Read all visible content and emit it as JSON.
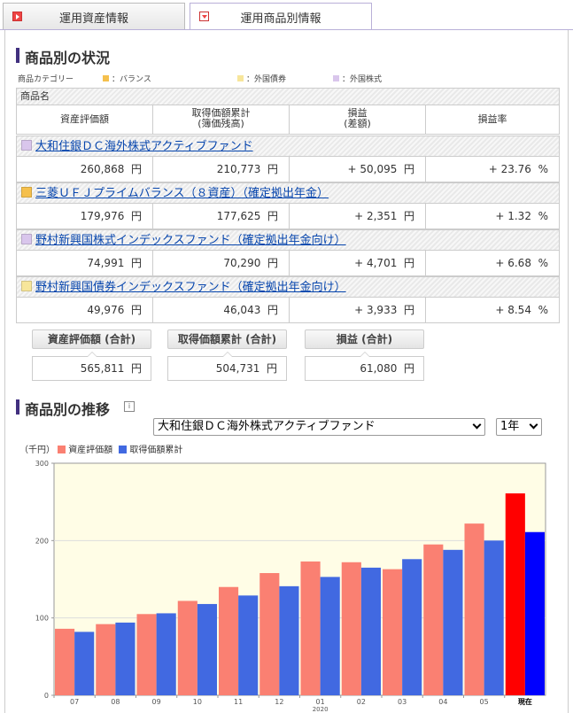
{
  "tabs": [
    {
      "label": "運用資産情報",
      "active": false
    },
    {
      "label": "運用商品別情報",
      "active": true
    }
  ],
  "status": {
    "title": "商品別の状況",
    "category_label": "商品カテゴリー",
    "categories": [
      {
        "label": "：バランス",
        "color": "#f5c04d"
      },
      {
        "label": "：外国債券",
        "color": "#f7e69b"
      },
      {
        "label": "：外国株式",
        "color": "#d9c6ec"
      }
    ],
    "header": {
      "name": "商品名",
      "col1": "資産評価額",
      "col2a": "取得価額累計",
      "col2b": "(簿価残高)",
      "col3a": "損益",
      "col3b": "(差額)",
      "col4": "損益率"
    },
    "funds": [
      {
        "name": "大和住銀ＤＣ海外株式アクティブファンド",
        "color": "#d9c6ec",
        "value": "260,868",
        "cost": "210,773",
        "pl": "+ 50,095",
        "rate": "+ 23.76"
      },
      {
        "name": "三菱ＵＦＪプライムバランス（８資産）（確定拠出年金）",
        "color": "#f5c04d",
        "value": "179,976",
        "cost": "177,625",
        "pl": "+ 2,351",
        "rate": "+ 1.32"
      },
      {
        "name": "野村新興国株式インデックスファンド（確定拠出年金向け）",
        "color": "#d9c6ec",
        "value": "74,991",
        "cost": "70,290",
        "pl": "+ 4,701",
        "rate": "+ 6.68"
      },
      {
        "name": "野村新興国債券インデックスファンド（確定拠出年金向け）",
        "color": "#f7e69b",
        "value": "49,976",
        "cost": "46,043",
        "pl": "+ 3,933",
        "rate": "+ 8.54"
      }
    ],
    "yen": "円",
    "pct": "%",
    "totals": [
      {
        "label": "資産評価額 (合計)",
        "value": "565,811"
      },
      {
        "label": "取得価額累計 (合計)",
        "value": "504,731"
      },
      {
        "label": "損益 (合計)",
        "value": "61,080"
      }
    ]
  },
  "trend": {
    "title": "商品別の推移",
    "info_icon": "i",
    "fund_select": "大和住銀ＤＣ海外株式アクティブファンド",
    "period_select": "1年",
    "unit": "（千円）",
    "legend": [
      {
        "label": "資産評価額",
        "color": "#fa8072"
      },
      {
        "label": "取得価額累計",
        "color": "#4169e1"
      }
    ]
  },
  "chart_data": {
    "type": "bar",
    "categories": [
      "07",
      "08",
      "09",
      "10",
      "11",
      "12",
      "01",
      "02",
      "03",
      "04",
      "05",
      "現在"
    ],
    "year_label": "2020",
    "series": [
      {
        "name": "資産評価額",
        "values": [
          86,
          92,
          105,
          122,
          140,
          158,
          173,
          172,
          163,
          195,
          222,
          261
        ]
      },
      {
        "name": "取得価額累計",
        "values": [
          82,
          94,
          106,
          118,
          129,
          141,
          153,
          165,
          176,
          188,
          200,
          211
        ]
      }
    ],
    "ylim": [
      0,
      300
    ],
    "yticks": [
      0,
      100,
      200,
      300
    ],
    "colors": {
      "value": "#fa8072",
      "cost": "#4169e1",
      "value_current": "#ff0000",
      "cost_current": "#0000ff",
      "plot_bg": "#fffde6"
    }
  }
}
